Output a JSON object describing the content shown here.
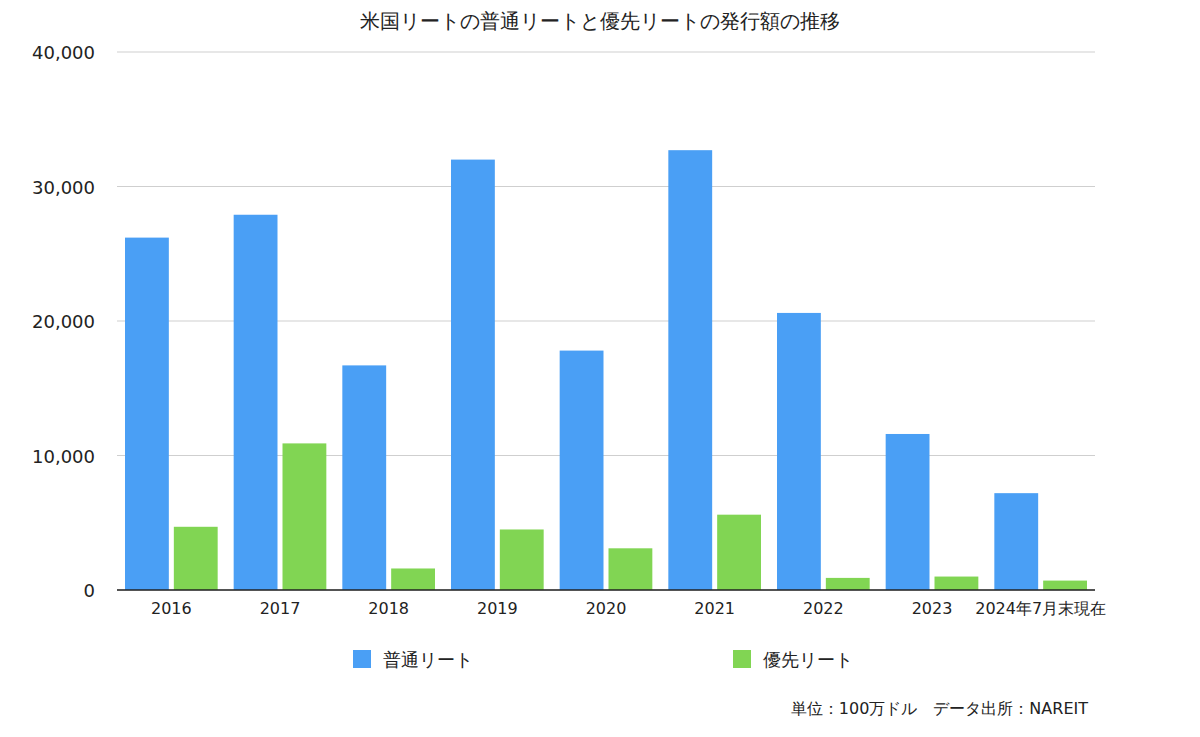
{
  "chart_data": {
    "type": "bar",
    "title": "米国リートの普通リートと優先リートの発行額の推移",
    "categories": [
      "2016",
      "2017",
      "2018",
      "2019",
      "2020",
      "2021",
      "2022",
      "2023",
      "2024年7月末現在"
    ],
    "series": [
      {
        "name": "普通リート",
        "color": "#4a9ff5",
        "values": [
          26200,
          27900,
          16700,
          32000,
          17800,
          32700,
          20600,
          11600,
          7200
        ]
      },
      {
        "name": "優先リート",
        "color": "#81d553",
        "values": [
          4700,
          10900,
          1600,
          4500,
          3100,
          5600,
          900,
          1000,
          700
        ]
      }
    ],
    "ylim": [
      0,
      40000
    ],
    "yticks": [
      0,
      {
        "value": 10000,
        "label": "10,000"
      },
      {
        "value": 20000,
        "label": "20,000"
      },
      {
        "value": 30000,
        "label": "30,000"
      },
      {
        "value": 40000,
        "label": "40,000"
      }
    ],
    "grid": true,
    "legend": "bottom",
    "annotations": [
      "単位：100万ドル　データ出所：NAREIT"
    ]
  }
}
